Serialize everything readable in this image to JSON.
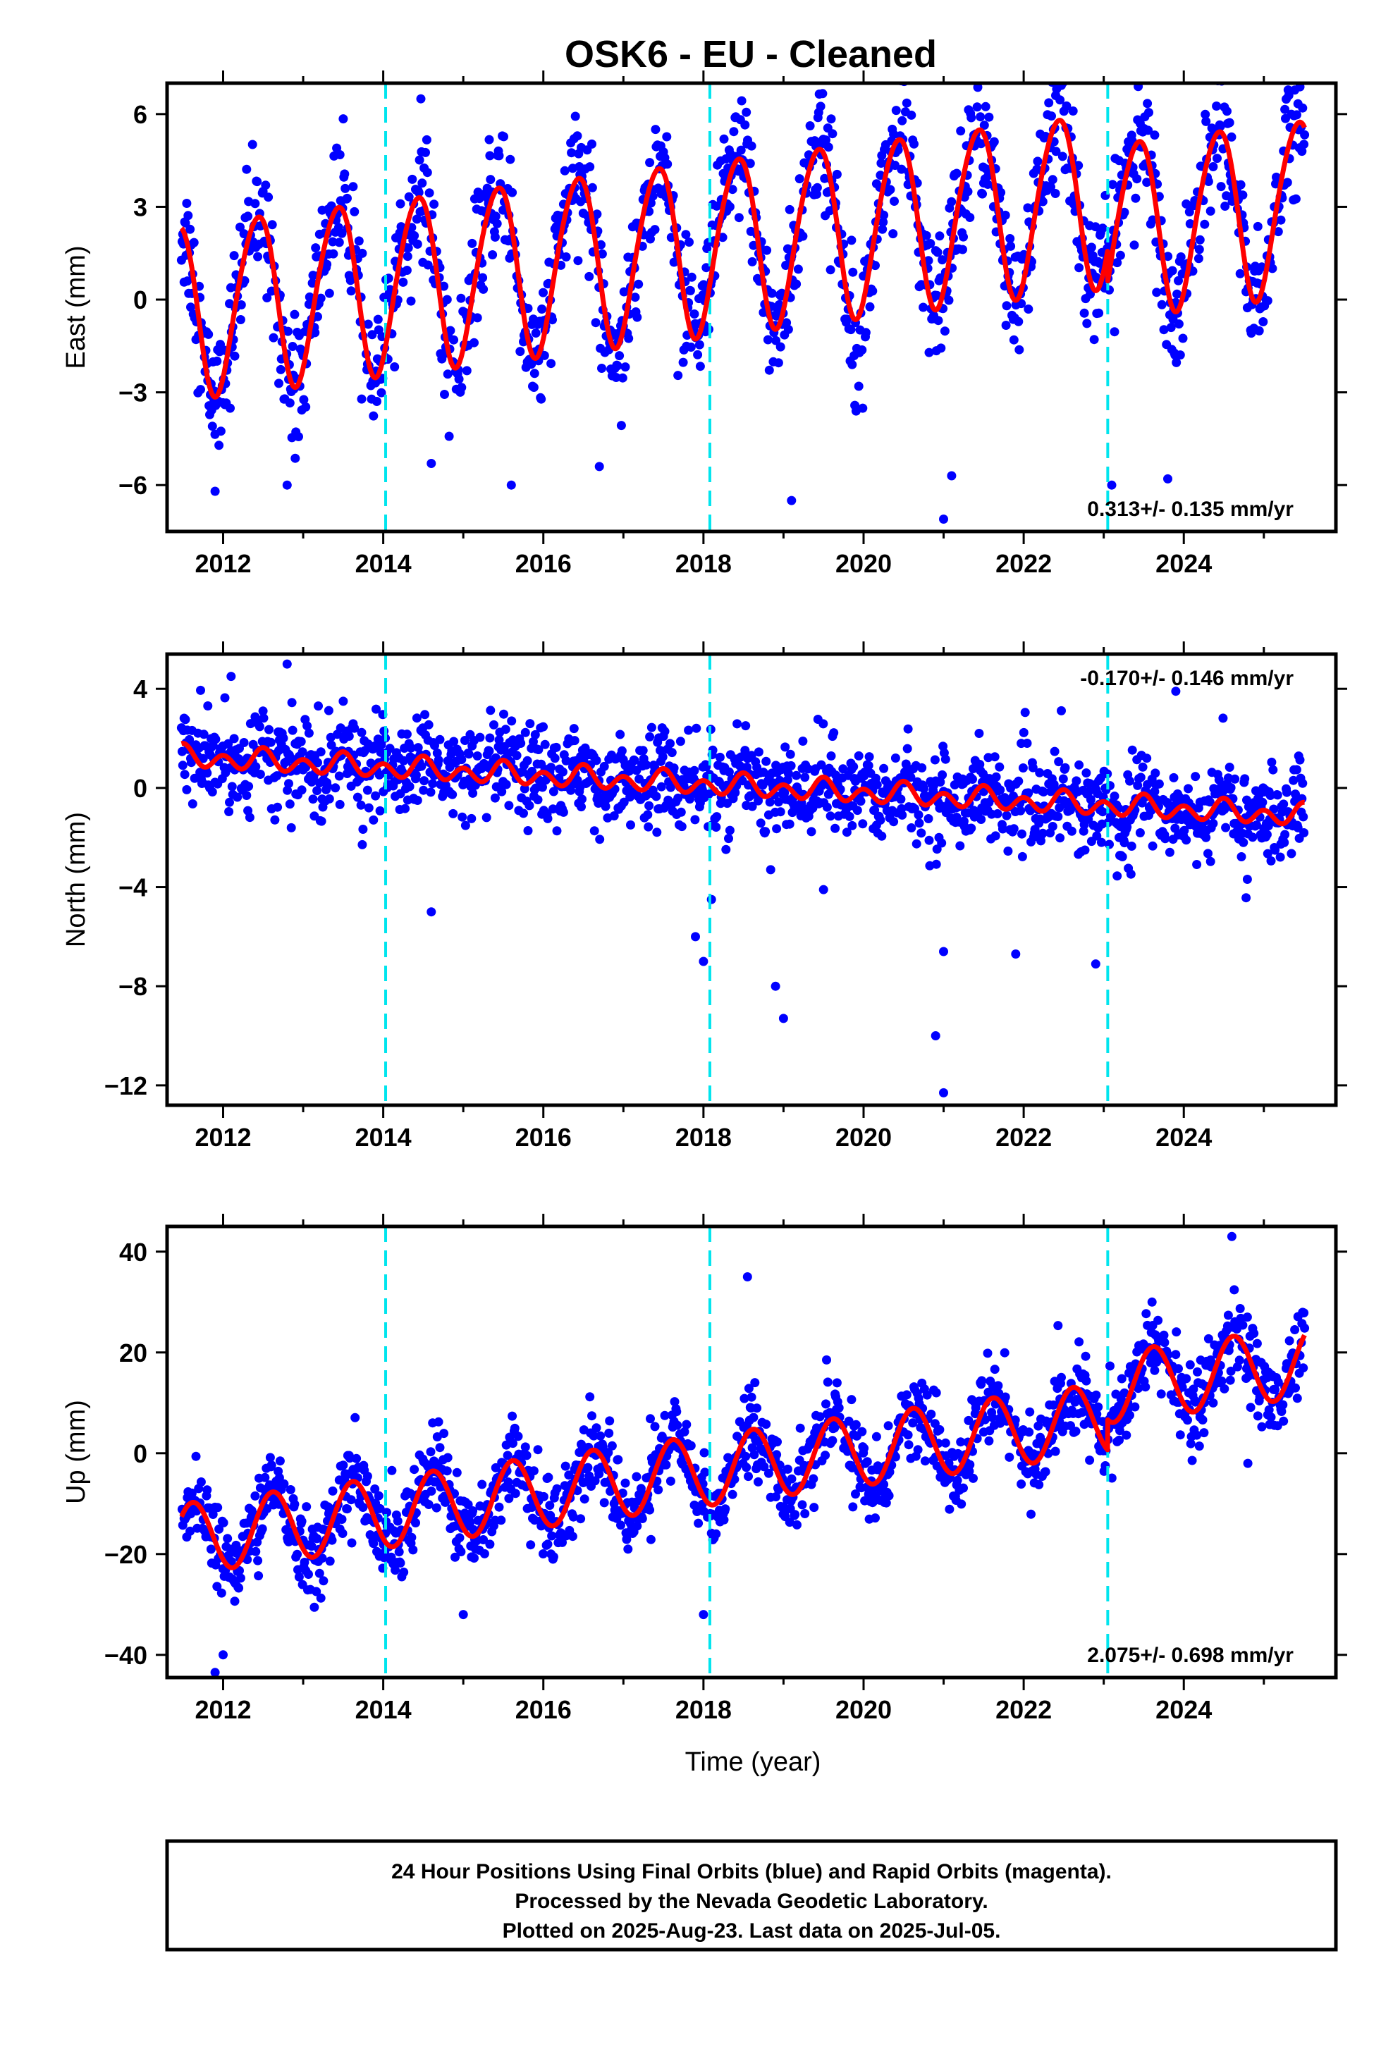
{
  "title": "OSK6  - EU - Cleaned",
  "xlabel": "Time (year)",
  "caption": {
    "lines": [
      "24 Hour Positions Using Final Orbits (blue) and Rapid Orbits (magenta).",
      "Processed by the Nevada Geodetic Laboratory.",
      "Plotted on 2025-Aug-23. Last data on 2025-Jul-05."
    ]
  },
  "colors": {
    "points": "#0000ff",
    "model": "#ff0000",
    "breaks": "#00e5ee",
    "frame": "#000000"
  },
  "chart_data": [
    {
      "type": "scatter",
      "name": "east",
      "ylabel": "East (mm)",
      "xlim": [
        2011.3,
        2025.9
      ],
      "ylim": [
        -7.5,
        7.0
      ],
      "yticks": [
        6,
        3,
        0,
        -3,
        -6
      ],
      "ytick_labels": [
        "6",
        "3",
        "0",
        "−3",
        "−6"
      ],
      "xticks": [
        2012,
        2014,
        2016,
        2018,
        2020,
        2022,
        2024
      ],
      "xtick_labels": [
        "2012",
        "2014",
        "2016",
        "2018",
        "2020",
        "2022",
        "2024"
      ],
      "rate_label": "0.313+/- 0.135 mm/yr",
      "rate_position": "bottom-right",
      "break_epochs": [
        2014.03,
        2018.08,
        2023.05
      ],
      "data_range": [
        2011.48,
        2025.51
      ],
      "model": {
        "trend_mm_per_yr": 0.313,
        "offset": -0.3,
        "annual_amp": 2.8,
        "annual_peak": 0.42,
        "semiannual_amp": 0.25,
        "semiannual_peak": 0.1,
        "steps": [
          {
            "epoch": 2023.05,
            "offset": -1.0
          }
        ]
      },
      "scatter_sd": 1.0,
      "outliers": [
        [
          2011.9,
          -6.2
        ],
        [
          2012.8,
          -6.0
        ],
        [
          2014.6,
          -5.3
        ],
        [
          2015.6,
          -6.0
        ],
        [
          2016.7,
          -5.4
        ],
        [
          2019.1,
          -6.5
        ],
        [
          2021.0,
          -7.1
        ],
        [
          2021.1,
          -5.7
        ],
        [
          2023.1,
          -6.0
        ],
        [
          2023.8,
          -5.8
        ],
        [
          2022.4,
          6.6
        ]
      ]
    },
    {
      "type": "scatter",
      "name": "north",
      "ylabel": "North (mm)",
      "xlim": [
        2011.3,
        2025.9
      ],
      "ylim": [
        -12.8,
        5.4
      ],
      "yticks": [
        4,
        0,
        -4,
        -8,
        -12
      ],
      "ytick_labels": [
        "4",
        "0",
        "−4",
        "−8",
        "−12"
      ],
      "xticks": [
        2012,
        2014,
        2016,
        2018,
        2020,
        2022,
        2024
      ],
      "xtick_labels": [
        "2012",
        "2014",
        "2016",
        "2018",
        "2020",
        "2022",
        "2024"
      ],
      "rate_label": "-0.170+/- 0.146 mm/yr",
      "rate_position": "top-right",
      "break_epochs": [
        2014.03,
        2018.08,
        2023.05
      ],
      "data_range": [
        2011.48,
        2025.51
      ],
      "model": {
        "trend_mm_per_yr": -0.17,
        "offset": 1.25,
        "annual_amp": 0.2,
        "annual_peak": 0.5,
        "semiannual_amp": 0.35,
        "semiannual_peak": 0.0,
        "steps": []
      },
      "scatter_sd": 0.9,
      "outliers": [
        [
          2012.1,
          4.5
        ],
        [
          2012.8,
          5.0
        ],
        [
          2014.6,
          -5.0
        ],
        [
          2017.9,
          -6.0
        ],
        [
          2018.0,
          -7.0
        ],
        [
          2018.1,
          -4.5
        ],
        [
          2018.9,
          -8.0
        ],
        [
          2019.0,
          -9.3
        ],
        [
          2019.5,
          -4.1
        ],
        [
          2020.9,
          -10.0
        ],
        [
          2021.0,
          -12.3
        ],
        [
          2021.0,
          -6.6
        ],
        [
          2021.9,
          -6.7
        ],
        [
          2022.9,
          -7.1
        ],
        [
          2023.9,
          3.9
        ]
      ]
    },
    {
      "type": "scatter",
      "name": "up",
      "ylabel": "Up (mm)",
      "xlim": [
        2011.3,
        2025.9
      ],
      "ylim": [
        -44.5,
        45.0
      ],
      "yticks": [
        40,
        20,
        0,
        -20,
        -40
      ],
      "ytick_labels": [
        "40",
        "20",
        "0",
        "−20",
        "−40"
      ],
      "xticks": [
        2012,
        2014,
        2016,
        2018,
        2020,
        2022,
        2024
      ],
      "xtick_labels": [
        "2012",
        "2014",
        "2016",
        "2018",
        "2020",
        "2022",
        "2024"
      ],
      "rate_label": "2.075+/- 0.698 mm/yr",
      "rate_position": "bottom-right",
      "break_epochs": [
        2014.03,
        2018.08,
        2023.05
      ],
      "data_range": [
        2011.48,
        2025.51
      ],
      "model": {
        "trend_mm_per_yr": 2.075,
        "offset": -17.0,
        "annual_amp": 7.0,
        "annual_peak": 0.62,
        "semiannual_amp": 0.0,
        "semiannual_peak": 0.0,
        "steps": [
          {
            "epoch": 2023.05,
            "offset": 6.0
          }
        ]
      },
      "scatter_sd": 4.0,
      "outliers": [
        [
          2011.9,
          -43.5
        ],
        [
          2012.0,
          -40.0
        ],
        [
          2018.0,
          -32.0
        ],
        [
          2018.55,
          35.0
        ],
        [
          2015.0,
          -32.0
        ],
        [
          2024.6,
          43.0
        ],
        [
          2024.8,
          -2.0
        ]
      ]
    }
  ]
}
